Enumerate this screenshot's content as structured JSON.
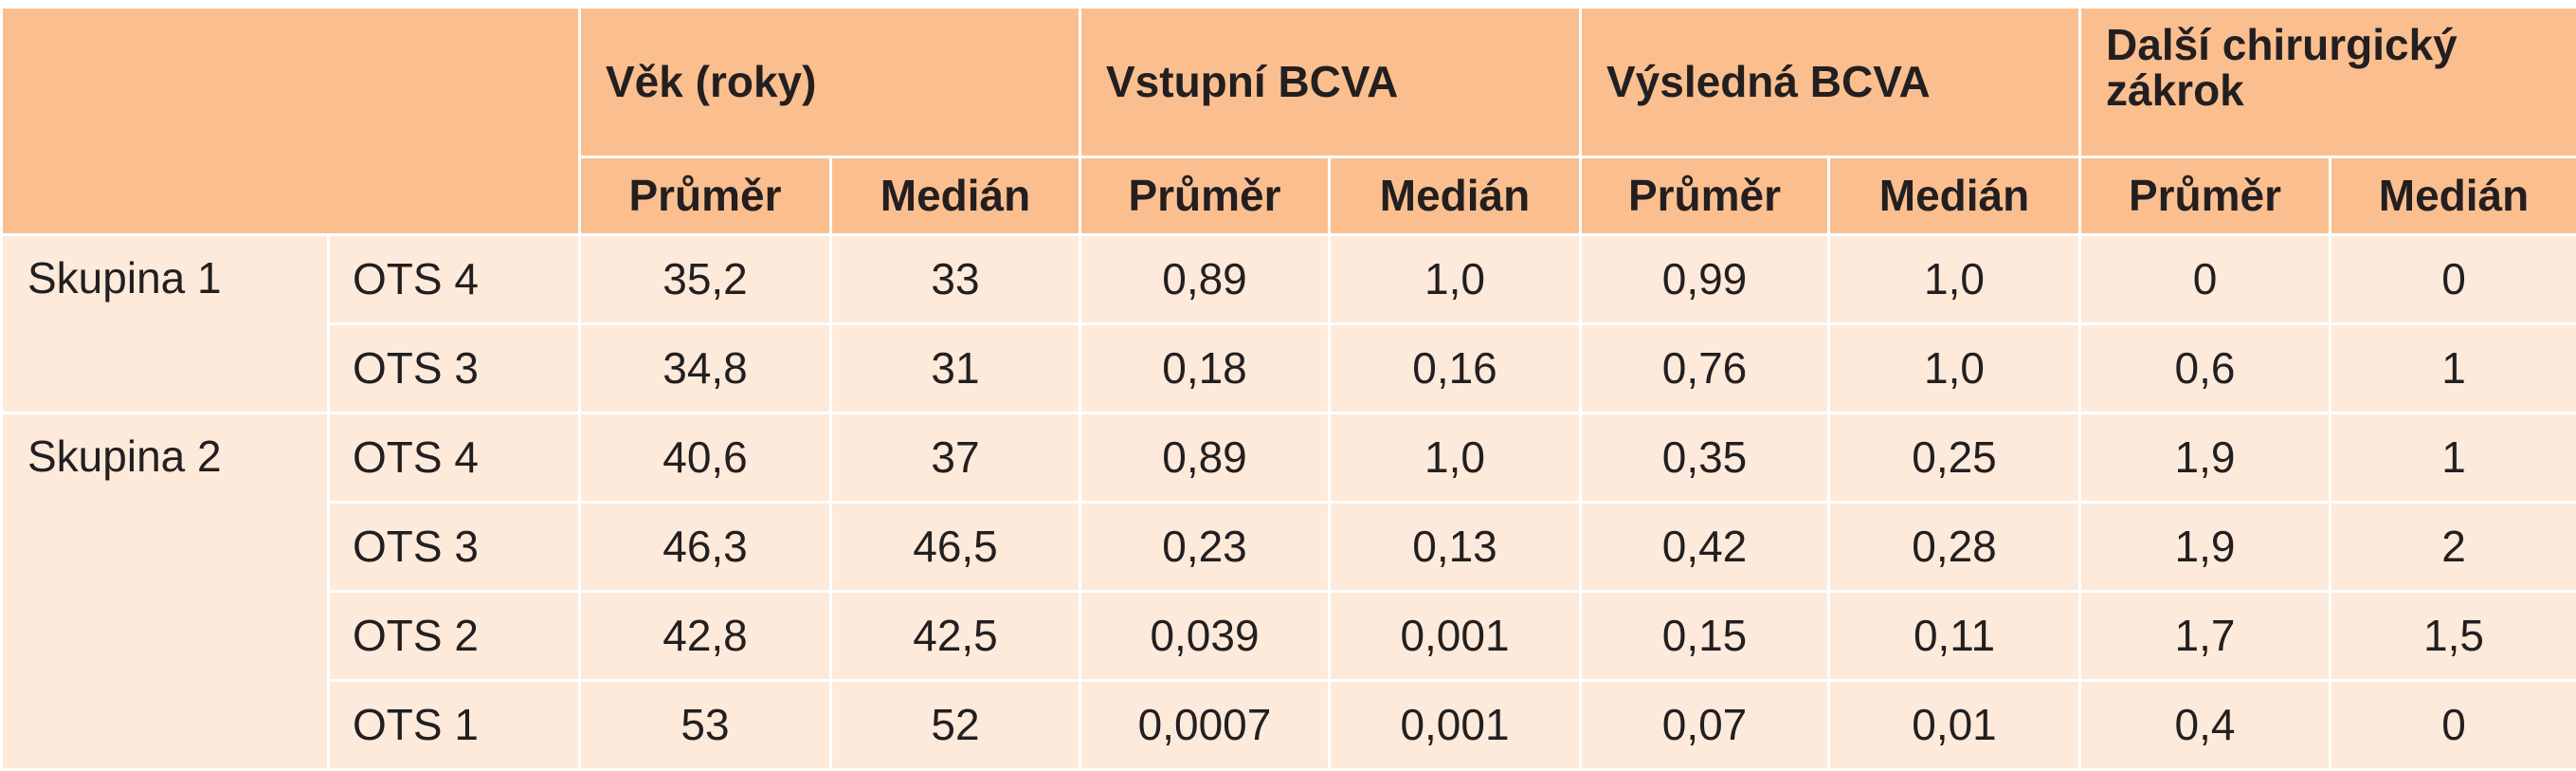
{
  "header": {
    "groups": [
      "Věk (roky)",
      "Vstupní BCVA",
      "Výsledná BCVA",
      "Další chirurgický zákrok"
    ],
    "sub_mean": "Průměr",
    "sub_median": "Medián"
  },
  "rows": [
    {
      "group": "Skupina 1",
      "ots": "OTS 4",
      "values": [
        "35,2",
        "33",
        "0,89",
        "1,0",
        "0,99",
        "1,0",
        "0",
        "0"
      ]
    },
    {
      "group": "",
      "ots": "OTS 3",
      "values": [
        "34,8",
        "31",
        "0,18",
        "0,16",
        "0,76",
        "1,0",
        "0,6",
        "1"
      ]
    },
    {
      "group": "Skupina 2",
      "ots": "OTS 4",
      "values": [
        "40,6",
        "37",
        "0,89",
        "1,0",
        "0,35",
        "0,25",
        "1,9",
        "1"
      ]
    },
    {
      "group": "",
      "ots": "OTS 3",
      "values": [
        "46,3",
        "46,5",
        "0,23",
        "0,13",
        "0,42",
        "0,28",
        "1,9",
        "2"
      ]
    },
    {
      "group": "",
      "ots": "OTS 2",
      "values": [
        "42,8",
        "42,5",
        "0,039",
        "0,001",
        "0,15",
        "0,11",
        "1,7",
        "1,5"
      ]
    },
    {
      "group": "",
      "ots": "OTS 1",
      "values": [
        "53",
        "52",
        "0,0007",
        "0,001",
        "0,07",
        "0,01",
        "0,4",
        "0"
      ]
    }
  ]
}
